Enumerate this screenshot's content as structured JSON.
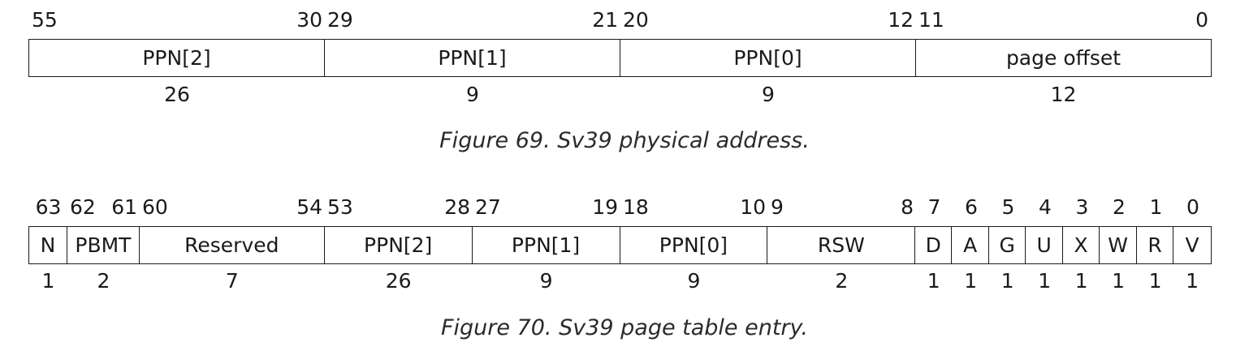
{
  "fig69": {
    "caption": "Figure 69. Sv39 physical address.",
    "fields": [
      {
        "name": "PPN[2]",
        "hi": "55",
        "lo": "30",
        "width": "26"
      },
      {
        "name": "PPN[1]",
        "hi": "29",
        "lo": "21",
        "width": "9"
      },
      {
        "name": "PPN[0]",
        "hi": "20",
        "lo": "12",
        "width": "9"
      },
      {
        "name": "page offset",
        "hi": "11",
        "lo": "0",
        "width": "12"
      }
    ]
  },
  "fig70": {
    "caption": "Figure 70. Sv39 page table entry.",
    "fields": [
      {
        "name": "N",
        "hi": "63",
        "lo": "",
        "width": "1"
      },
      {
        "name": "PBMT",
        "hi": "62",
        "lo": "61",
        "width": "2"
      },
      {
        "name": "Reserved",
        "hi": "60",
        "lo": "54",
        "width": "7"
      },
      {
        "name": "PPN[2]",
        "hi": "53",
        "lo": "28",
        "width": "26"
      },
      {
        "name": "PPN[1]",
        "hi": "27",
        "lo": "19",
        "width": "9"
      },
      {
        "name": "PPN[0]",
        "hi": "18",
        "lo": "10",
        "width": "9"
      },
      {
        "name": "RSW",
        "hi": "9",
        "lo": "8",
        "width": "2"
      },
      {
        "name": "D",
        "hi": "7",
        "lo": "",
        "width": "1"
      },
      {
        "name": "A",
        "hi": "6",
        "lo": "",
        "width": "1"
      },
      {
        "name": "G",
        "hi": "5",
        "lo": "",
        "width": "1"
      },
      {
        "name": "U",
        "hi": "4",
        "lo": "",
        "width": "1"
      },
      {
        "name": "X",
        "hi": "3",
        "lo": "",
        "width": "1"
      },
      {
        "name": "W",
        "hi": "2",
        "lo": "",
        "width": "1"
      },
      {
        "name": "R",
        "hi": "1",
        "lo": "",
        "width": "1"
      },
      {
        "name": "V",
        "hi": "0",
        "lo": "",
        "width": "1"
      }
    ]
  }
}
